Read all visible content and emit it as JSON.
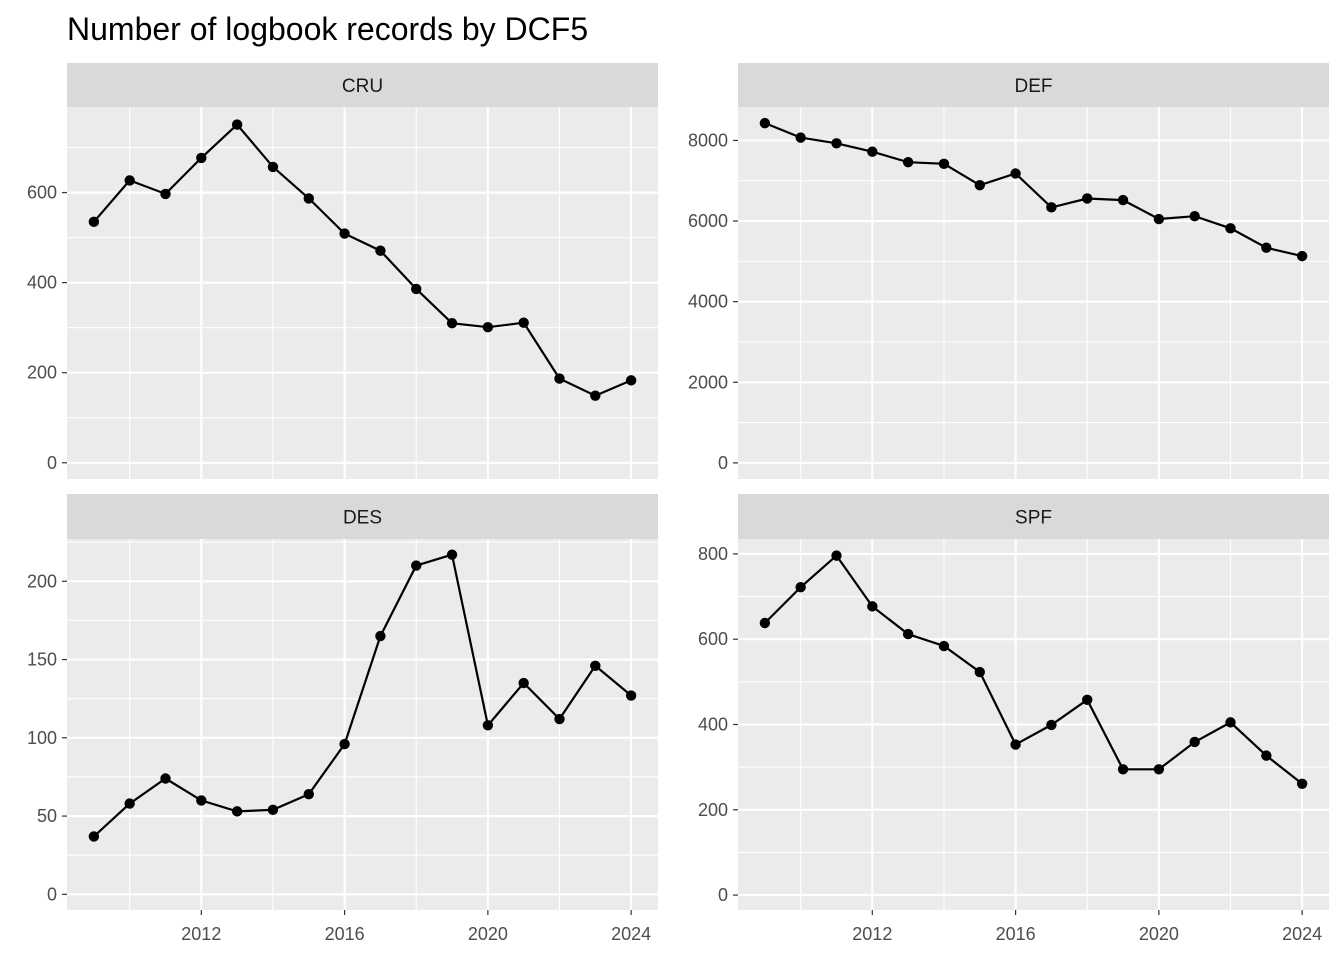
{
  "chart_data": {
    "type": "line",
    "title": "Number of logbook records by DCF5",
    "layout": "facet_wrap",
    "grid": true,
    "colors": {
      "panel": "#ebebeb",
      "strip": "#d9d9d9",
      "line": "#000000"
    },
    "x": [
      2009,
      2010,
      2011,
      2012,
      2013,
      2014,
      2015,
      2016,
      2017,
      2018,
      2019,
      2020,
      2021,
      2022,
      2023,
      2024
    ],
    "xlim": [
      2008.25,
      2024.75
    ],
    "x_ticks": [
      2012,
      2016,
      2020,
      2024
    ],
    "x_tick_labels": [
      "2012",
      "2016",
      "2020",
      "2024"
    ],
    "panels": [
      {
        "name": "CRU",
        "values": [
          535,
          627,
          597,
          677,
          751,
          657,
          587,
          509,
          471,
          386,
          310,
          301,
          311,
          187,
          149,
          183
        ],
        "ylim": [
          -36,
          790
        ],
        "y_ticks": [
          0,
          200,
          400,
          600
        ],
        "y_tick_labels": [
          "0",
          "200",
          "400",
          "600"
        ]
      },
      {
        "name": "DEF",
        "values": [
          8430,
          8070,
          7930,
          7720,
          7460,
          7420,
          6890,
          7180,
          6340,
          6560,
          6520,
          6050,
          6120,
          5820,
          5340,
          5130
        ],
        "ylim": [
          -400,
          8830
        ],
        "y_ticks": [
          0,
          2000,
          4000,
          6000,
          8000
        ],
        "y_tick_labels": [
          "0",
          "2000",
          "4000",
          "6000",
          "8000"
        ]
      },
      {
        "name": "DES",
        "values": [
          37,
          58,
          74,
          60,
          53,
          54,
          64,
          96,
          165,
          210,
          217,
          108,
          135,
          112,
          146,
          127
        ],
        "ylim": [
          -10,
          227
        ],
        "y_ticks": [
          0,
          50,
          100,
          150,
          200
        ],
        "y_tick_labels": [
          "0",
          "50",
          "100",
          "150",
          "200"
        ]
      },
      {
        "name": "SPF",
        "values": [
          638,
          722,
          796,
          677,
          612,
          584,
          523,
          353,
          399,
          458,
          295,
          295,
          359,
          405,
          327,
          261
        ],
        "ylim": [
          -35,
          835
        ],
        "y_ticks": [
          0,
          200,
          400,
          600,
          800
        ],
        "y_tick_labels": [
          "0",
          "200",
          "400",
          "600",
          "800"
        ]
      }
    ]
  }
}
